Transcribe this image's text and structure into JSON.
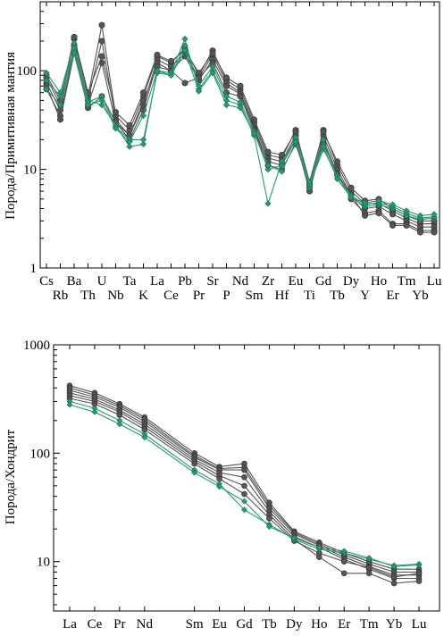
{
  "chart_data": [
    {
      "type": "line",
      "title": "",
      "ylabel": "Порода/Примитивная мантия",
      "xlabel": "",
      "yscale": "log",
      "ylim": [
        1,
        500
      ],
      "yticks": [
        1,
        10,
        100
      ],
      "ytick_labels": [
        "1",
        "10",
        "100"
      ],
      "categories": [
        "Cs",
        "Rb",
        "Ba",
        "Th",
        "U",
        "Nb",
        "Ta",
        "K",
        "La",
        "Ce",
        "Pb",
        "Pr",
        "Sr",
        "P",
        "Nd",
        "Sm",
        "Zr",
        "Hf",
        "Eu",
        "Ti",
        "Gd",
        "Tb",
        "Dy",
        "Y",
        "Ho",
        "Er",
        "Tm",
        "Yb",
        "Lu"
      ],
      "label_rows": [
        "top",
        "bottom",
        "top",
        "bottom",
        "top",
        "bottom",
        "top",
        "bottom",
        "top",
        "bottom",
        "top",
        "bottom",
        "top",
        "bottom",
        "top",
        "bottom",
        "top",
        "bottom",
        "top",
        "bottom",
        "top",
        "bottom",
        "top",
        "bottom",
        "top",
        "bottom",
        "top",
        "bottom",
        "top"
      ],
      "colors": {
        "gray": "#555555",
        "green": "#2a9a6e"
      },
      "series": [
        {
          "color": "gray",
          "values": [
            85,
            45,
            210,
            55,
            290,
            35,
            25,
            55,
            140,
            120,
            170,
            90,
            160,
            80,
            65,
            30,
            14,
            13,
            25,
            7,
            25,
            11,
            6,
            4.5,
            4.5,
            3.8,
            3.2,
            2.8,
            2.8
          ]
        },
        {
          "color": "gray",
          "values": [
            75,
            40,
            180,
            50,
            200,
            32,
            22,
            45,
            130,
            110,
            150,
            85,
            145,
            75,
            60,
            28,
            13,
            12,
            22,
            6.5,
            22,
            10,
            5.5,
            4,
            4.2,
            3.5,
            3,
            2.6,
            2.6
          ]
        },
        {
          "color": "gray",
          "values": [
            65,
            35,
            160,
            45,
            120,
            30,
            20,
            40,
            120,
            100,
            140,
            80,
            130,
            70,
            58,
            26,
            12,
            11,
            20,
            6,
            20,
            9,
            5,
            3.6,
            3.8,
            2.8,
            2.8,
            2.4,
            2.4
          ]
        },
        {
          "color": "gray",
          "values": [
            90,
            50,
            220,
            60,
            140,
            38,
            28,
            60,
            145,
            125,
            160,
            95,
            150,
            85,
            70,
            32,
            15,
            14,
            24,
            7.5,
            24,
            12,
            6.5,
            4.8,
            5,
            4,
            3.4,
            3,
            3
          ]
        },
        {
          "color": "gray",
          "values": [
            70,
            32,
            150,
            42,
            55,
            30,
            22,
            50,
            110,
            100,
            75,
            85,
            120,
            60,
            55,
            25,
            11,
            10,
            18,
            7,
            18,
            9,
            5.5,
            3.4,
            3.6,
            2.7,
            2.7,
            2.3,
            2.3
          ]
        },
        {
          "color": "green",
          "values": [
            95,
            60,
            190,
            50,
            45,
            28,
            17,
            18,
            100,
            95,
            210,
            65,
            100,
            50,
            45,
            22,
            4.5,
            12,
            20,
            6.5,
            20,
            8,
            5.2,
            4.2,
            4.4,
            4,
            3.4,
            3.1,
            3.2
          ]
        },
        {
          "color": "green",
          "values": [
            80,
            55,
            170,
            48,
            55,
            27,
            20,
            20,
            95,
            90,
            180,
            70,
            110,
            55,
            48,
            24,
            10,
            11,
            21,
            7,
            16,
            8.5,
            5.4,
            4.4,
            4.6,
            4.2,
            3.6,
            3.2,
            3.3
          ]
        },
        {
          "color": "green",
          "values": [
            65,
            45,
            150,
            45,
            50,
            26,
            19,
            35,
            100,
            90,
            160,
            62,
            95,
            45,
            42,
            23,
            11,
            9.5,
            19,
            7.5,
            17,
            8,
            5.2,
            4.6,
            4.8,
            4.4,
            3.8,
            3.4,
            3.5
          ]
        }
      ]
    },
    {
      "type": "line",
      "title": "",
      "ylabel": "Порода/Хондрит",
      "xlabel": "",
      "yscale": "log",
      "ylim": [
        3.5,
        1000
      ],
      "yticks": [
        10,
        100,
        1000
      ],
      "ytick_labels": [
        "10",
        "100",
        "1000"
      ],
      "categories": [
        "La",
        "Ce",
        "Pr",
        "Nd",
        "Sm",
        "Eu",
        "Gd",
        "Tb",
        "Dy",
        "Ho",
        "Er",
        "Tm",
        "Yb",
        "Lu"
      ],
      "category_positions": [
        0,
        1,
        2,
        3,
        5,
        6,
        7,
        8,
        9,
        10,
        11,
        12,
        13,
        14
      ],
      "colors": {
        "gray": "#555555",
        "green": "#2a9a6e"
      },
      "series": [
        {
          "color": "gray",
          "values": [
            420,
            360,
            285,
            215,
            100,
            75,
            80,
            35,
            19,
            15,
            12,
            10,
            8.5,
            8.5
          ]
        },
        {
          "color": "gray",
          "values": [
            400,
            345,
            275,
            205,
            95,
            72,
            74,
            33,
            18.5,
            14.5,
            11.5,
            9.5,
            8,
            8
          ]
        },
        {
          "color": "gray",
          "values": [
            380,
            330,
            265,
            195,
            92,
            70,
            70,
            31,
            18,
            14,
            11,
            9,
            7.5,
            7.5
          ]
        },
        {
          "color": "gray",
          "values": [
            360,
            315,
            250,
            185,
            88,
            66,
            60,
            29,
            17,
            13.5,
            10.5,
            8.5,
            7,
            7
          ]
        },
        {
          "color": "gray",
          "values": [
            340,
            300,
            240,
            175,
            84,
            62,
            50,
            27,
            16,
            11,
            7.8,
            7.8,
            6.3,
            6.6
          ]
        },
        {
          "color": "gray",
          "values": [
            320,
            285,
            225,
            165,
            80,
            58,
            42,
            25,
            15.5,
            12,
            10,
            8.8,
            7.2,
            7.8
          ]
        },
        {
          "color": "green",
          "values": [
            300,
            260,
            200,
            150,
            70,
            52,
            30,
            22,
            16,
            13,
            12,
            10.5,
            9.2,
            9.5
          ]
        },
        {
          "color": "green",
          "values": [
            280,
            240,
            185,
            140,
            66,
            49,
            36,
            21,
            16.5,
            13.5,
            12.5,
            10.8,
            9,
            9.3
          ]
        }
      ]
    }
  ]
}
